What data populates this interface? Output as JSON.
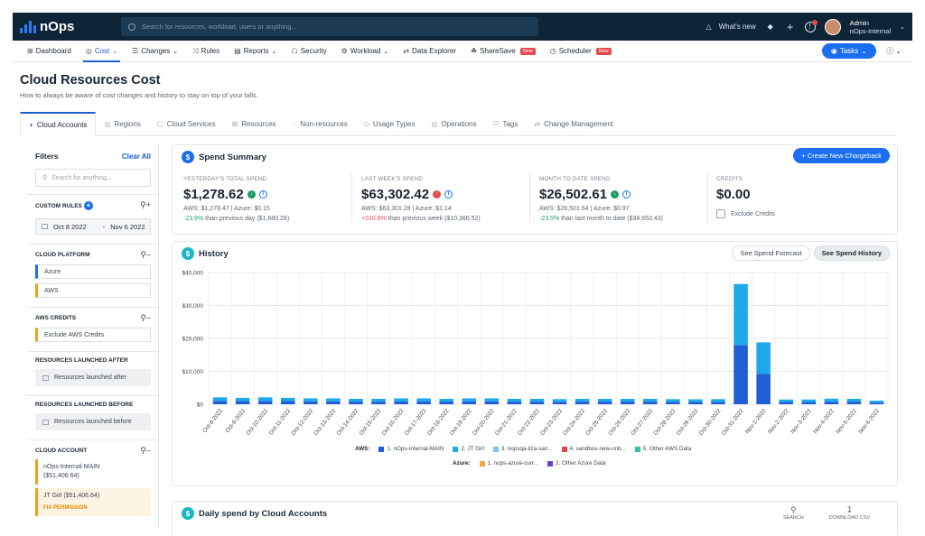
{
  "app": {
    "logo": "nOps"
  },
  "topbar": {
    "search_placeholder": "Search for resources, workload, users or anything...",
    "whats_new": "What's new",
    "user_name": "Admin",
    "user_org": "nOps-Internal"
  },
  "nav": {
    "items": [
      {
        "label": "Dashboard",
        "icon": "grid-icon"
      },
      {
        "label": "Cost",
        "icon": "cost-icon",
        "dropdown": true,
        "active": true
      },
      {
        "label": "Changes",
        "icon": "list-icon",
        "dropdown": true
      },
      {
        "label": "Rules",
        "icon": "shuffle-icon"
      },
      {
        "label": "Reports",
        "icon": "report-icon",
        "dropdown": true
      },
      {
        "label": "Security",
        "icon": "lock-icon"
      },
      {
        "label": "Workload",
        "icon": "gear-icon",
        "dropdown": true
      },
      {
        "label": "Data Explorer",
        "icon": "link-icon"
      },
      {
        "label": "ShareSave",
        "icon": "sharesave-icon",
        "badge": "New"
      },
      {
        "label": "Scheduler",
        "icon": "clock-icon",
        "badge": "New"
      }
    ],
    "tasks": "Tasks"
  },
  "page": {
    "title": "Cloud Resources Cost",
    "subtitle": "How to always be aware of cost changes and history to stay on top of your bills."
  },
  "tabs": [
    {
      "label": "Cloud Accounts",
      "active": true
    },
    {
      "label": "Regions"
    },
    {
      "label": "Cloud Services"
    },
    {
      "label": "Resources"
    },
    {
      "label": "Non-resources"
    },
    {
      "label": "Usage Types"
    },
    {
      "label": "Operations"
    },
    {
      "label": "Tags"
    },
    {
      "label": "Change Management"
    }
  ],
  "filters": {
    "title": "Filters",
    "clear": "Clear All",
    "search_placeholder": "Search for anything...",
    "custom_rules": "CUSTOM RULES",
    "date_from": "Oct 8 2022",
    "date_sep": "-",
    "date_to": "Nov 6 2022",
    "cloud_platform": "CLOUD PLATFORM",
    "platforms": [
      "Azure",
      "AWS"
    ],
    "aws_credits": "AWS CREDITS",
    "exclude_credits": "Exclude AWS Credits",
    "launched_after_h": "RESOURCES LAUNCHED AFTER",
    "launched_after": "Resources launched after",
    "launched_before_h": "RESOURCES LAUNCHED BEFORE",
    "launched_before": "Resources launched before",
    "cloud_account": "CLOUD ACCOUNT",
    "accounts": [
      {
        "name": "nOps-Internal-MAIN",
        "amount": "($51,406.64)"
      },
      {
        "name": "JT Girl ($51,406.64)",
        "fix": "FIX PERMISSION"
      }
    ]
  },
  "summary": {
    "title": "Spend Summary",
    "chargeback": "+ Create New Chargeback",
    "kpis": [
      {
        "label": "YESTERDAY'S TOTAL SPEND",
        "value": "$1,278.62",
        "dir": "down",
        "detail": "AWS: $1,278.47 | Azure: $0.15",
        "change": "-23.9%",
        "compare": "than previous day ($1,680.26)"
      },
      {
        "label": "LAST WEEK'S SPEND",
        "value": "$63,302.42",
        "dir": "up",
        "detail": "AWS: $63,301.28 | Azure: $1.14",
        "change": "+510.6%",
        "compare": "than previous week ($10,366.52)"
      },
      {
        "label": "MONTH TO DATE SPEND",
        "value": "$26,502.61",
        "dir": "down",
        "detail": "AWS: $26,501.64 | Azure: $0.97",
        "change": "-23.5%",
        "compare": "than last month to date ($34,653.43)"
      }
    ],
    "credits": {
      "label": "CREDITS",
      "value": "$0.00",
      "exclude": "Exclude Credits"
    }
  },
  "history": {
    "title": "History",
    "btn_forecast": "See Spend Forecast",
    "btn_history": "See Spend History"
  },
  "chart_data": {
    "type": "bar",
    "stacked": true,
    "ylim": [
      0,
      40000
    ],
    "yticks": [
      0,
      10000,
      20000,
      30000,
      40000
    ],
    "ytick_labels": [
      "$0",
      "$10,000",
      "$20,000",
      "$30,000",
      "$40,000"
    ],
    "categories": [
      "Oct-8-2022",
      "Oct-9-2022",
      "Oct-10-2022",
      "Oct-11-2022",
      "Oct-12-2022",
      "Oct-13-2022",
      "Oct-14-2022",
      "Oct-15-2022",
      "Oct-16-2022",
      "Oct-17-2022",
      "Oct-18-2022",
      "Oct-19-2022",
      "Oct-20-2022",
      "Oct-21-2022",
      "Oct-22-2022",
      "Oct-23-2022",
      "Oct-24-2022",
      "Oct-25-2022",
      "Oct-26-2022",
      "Oct-27-2022",
      "Oct-28-2022",
      "Oct-29-2022",
      "Oct-30-2022",
      "Oct-31-2022",
      "Nov-1-2022",
      "Nov-2-2022",
      "Nov-3-2022",
      "Nov-4-2022",
      "Nov-5-2022",
      "Nov-6-2022"
    ],
    "series": [
      {
        "name": "1. nOps-Internal-MAIN",
        "group": "AWS",
        "color": "#1f5fd6",
        "values": [
          1000,
          950,
          1000,
          950,
          850,
          850,
          800,
          800,
          850,
          850,
          800,
          850,
          850,
          800,
          800,
          750,
          800,
          800,
          800,
          800,
          750,
          700,
          750,
          18000,
          9200,
          700,
          700,
          800,
          800,
          500
        ]
      },
      {
        "name": "2. JT Girl",
        "group": "AWS",
        "color": "#1fa8ea",
        "values": [
          1100,
          1000,
          1100,
          1000,
          950,
          950,
          850,
          850,
          950,
          950,
          850,
          950,
          950,
          850,
          850,
          800,
          850,
          850,
          850,
          850,
          800,
          800,
          800,
          18500,
          9600,
          750,
          750,
          900,
          850,
          600
        ]
      },
      {
        "name": "3. nopsqa-liza-san...",
        "group": "AWS",
        "color": "#7bc4ef",
        "values": [
          0,
          0,
          0,
          0,
          0,
          0,
          0,
          0,
          0,
          0,
          0,
          0,
          0,
          0,
          0,
          0,
          0,
          0,
          0,
          0,
          0,
          0,
          0,
          0,
          0,
          0,
          0,
          0,
          0,
          0
        ]
      },
      {
        "name": "4. sandbox-new-onb...",
        "group": "AWS",
        "color": "#e5484d",
        "values": [
          0,
          0,
          0,
          0,
          0,
          0,
          0,
          0,
          0,
          0,
          0,
          0,
          0,
          0,
          0,
          0,
          0,
          0,
          0,
          0,
          0,
          0,
          0,
          0,
          0,
          0,
          0,
          0,
          0,
          0
        ]
      },
      {
        "name": "5. Other AWS Data",
        "group": "AWS",
        "color": "#2bc4a4",
        "values": [
          0,
          0,
          0,
          0,
          0,
          0,
          0,
          0,
          0,
          0,
          0,
          0,
          0,
          0,
          0,
          0,
          0,
          0,
          0,
          0,
          0,
          0,
          0,
          0,
          0,
          0,
          0,
          0,
          0,
          0
        ]
      },
      {
        "name": "1. nops-azure-curr...",
        "group": "Azure",
        "color": "#f4a742",
        "values": [
          0,
          0,
          0,
          0,
          0,
          0,
          0,
          0,
          0,
          0,
          0,
          0,
          0,
          0,
          0,
          0,
          0,
          0,
          0,
          0,
          0,
          0,
          0,
          0,
          0,
          0,
          0,
          0,
          0,
          0
        ]
      },
      {
        "name": "2. Other Azure Data",
        "group": "Azure",
        "color": "#6a3fd1",
        "values": [
          0,
          0,
          0,
          0,
          0,
          0,
          0,
          0,
          0,
          0,
          0,
          0,
          0,
          0,
          0,
          0,
          0,
          0,
          0,
          0,
          0,
          0,
          0,
          0,
          0,
          0,
          0,
          0,
          0,
          0
        ]
      }
    ],
    "legend_groups": [
      "AWS:",
      "Azure:"
    ],
    "grid": true
  },
  "daily": {
    "title": "Daily spend by Cloud Accounts",
    "search": "SEARCH",
    "download": "DOWNLOAD CSV"
  }
}
